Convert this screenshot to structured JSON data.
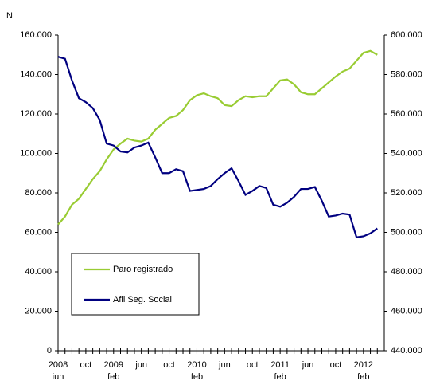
{
  "chart_data": {
    "type": "line",
    "axis_title": "N",
    "categories": [
      "2008 iun",
      null,
      null,
      null,
      "oct",
      null,
      null,
      null,
      "2009 feb",
      null,
      null,
      null,
      "jun",
      null,
      null,
      null,
      "oct",
      null,
      null,
      null,
      "2010 feb",
      null,
      null,
      null,
      "jun",
      null,
      null,
      null,
      "oct",
      null,
      null,
      null,
      "2011 feb",
      null,
      null,
      null,
      "jun",
      null,
      null,
      null,
      "oct",
      null,
      null,
      null,
      "2012 feb",
      null,
      null
    ],
    "series": [
      {
        "name": "Paro registrado",
        "color": "#99cc33",
        "values": [
          64000,
          68000,
          74000,
          77000,
          82000,
          87000,
          91000,
          97000,
          102000,
          105000,
          107500,
          106500,
          106000,
          107500,
          112000,
          115000,
          118000,
          119000,
          122000,
          127000,
          129500,
          130500,
          129000,
          128000,
          124500,
          124000,
          127000,
          129000,
          128500,
          129000,
          129000,
          133000,
          137000,
          137500,
          135000,
          131000,
          130000,
          130000,
          133000,
          136000,
          139000,
          141500,
          143000,
          147000,
          151000,
          152000,
          150000
        ]
      },
      {
        "name": "Afil Seg. Social",
        "color": "#000080",
        "axis": "y2",
        "values": [
          589000,
          588000,
          577000,
          568000,
          566000,
          563000,
          557000,
          545000,
          544000,
          541000,
          540500,
          543000,
          544000,
          545500,
          538000,
          530000,
          530000,
          532000,
          531000,
          521000,
          521500,
          522000,
          523500,
          527000,
          530000,
          532500,
          526000,
          519000,
          521000,
          523500,
          522500,
          514000,
          513000,
          515000,
          518000,
          522000,
          522000,
          523000,
          516000,
          508000,
          508500,
          509500,
          509000,
          497500,
          498000,
          499500,
          502000
        ]
      }
    ],
    "ylim": [
      0,
      160000
    ],
    "yticks": [
      0,
      {
        "value": 20000,
        "label": "20.000"
      },
      {
        "value": 40000,
        "label": "40.000"
      },
      {
        "value": 60000,
        "label": "60.000"
      },
      {
        "value": 80000,
        "label": "80.000"
      },
      {
        "value": 100000,
        "label": "100.000"
      },
      {
        "value": 120000,
        "label": "120.000"
      },
      {
        "value": 140000,
        "label": "140.000"
      },
      {
        "value": 160000,
        "label": "160.000"
      }
    ],
    "y2lim": [
      440000,
      600000
    ],
    "y2ticks": [
      {
        "value": 440000,
        "label": "440.000"
      },
      {
        "value": 460000,
        "label": "460.000"
      },
      {
        "value": 480000,
        "label": "480.000"
      },
      {
        "value": 500000,
        "label": "500.000"
      },
      {
        "value": 520000,
        "label": "520.000"
      },
      {
        "value": 540000,
        "label": "540.000"
      },
      {
        "value": 560000,
        "label": "560.000"
      },
      {
        "value": 580000,
        "label": "580.000"
      },
      {
        "value": 600000,
        "label": "600.000"
      }
    ],
    "legend": "lower left",
    "grid": false
  }
}
